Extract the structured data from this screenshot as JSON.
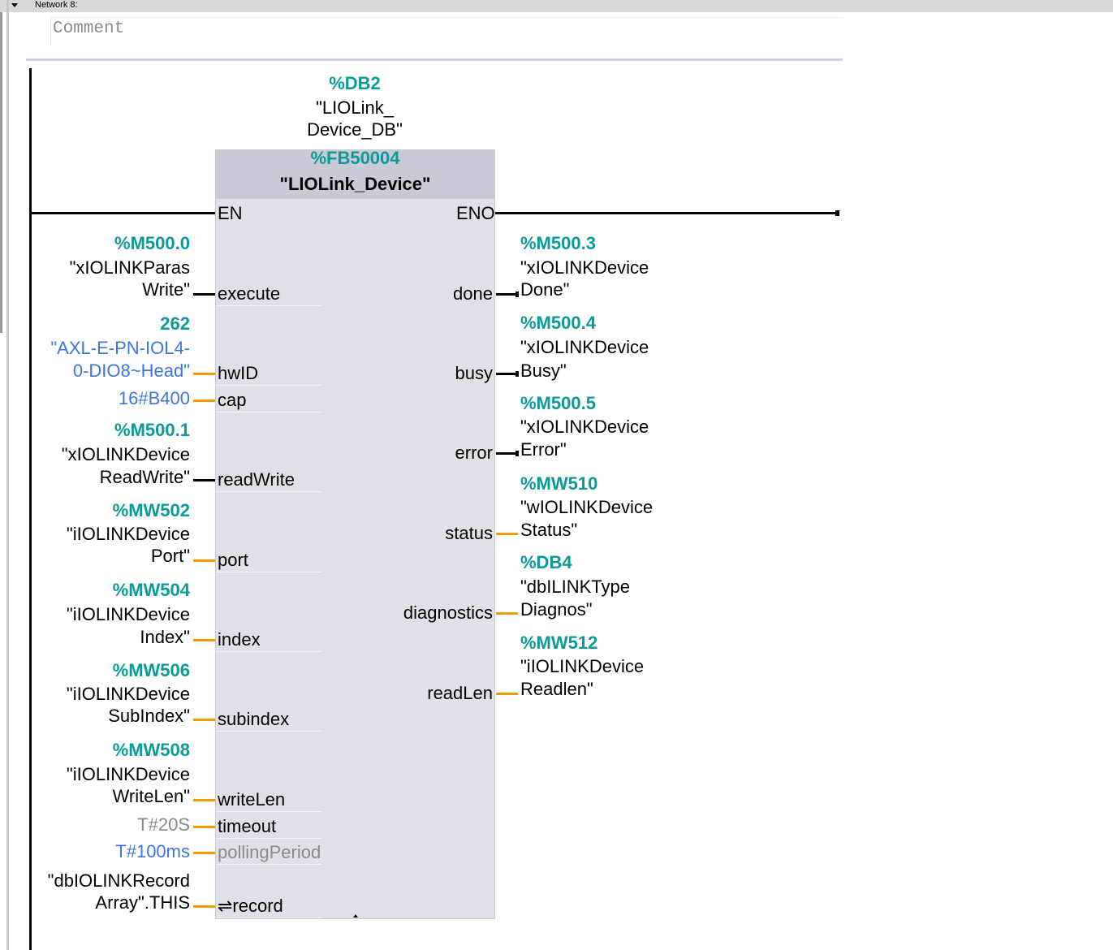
{
  "network": {
    "title": "Network 8:",
    "comment_placeholder": "Comment"
  },
  "instance": {
    "address": "%DB2",
    "name_line1": "\"LIOLink_",
    "name_line2": "Device_DB\""
  },
  "block": {
    "address": "%FB50004",
    "name": "\"LIOLink_Device\"",
    "en": "EN",
    "eno": "ENO"
  },
  "colors": {
    "operand_address": "#0a9a98",
    "constant": "#3f74d8",
    "bool_wire": "#000000",
    "data_wire": "#f59a00",
    "block_body": "#e0e0e8"
  },
  "inputs": [
    {
      "pin": "execute",
      "wire": "bool",
      "lines": [
        {
          "text": "%M500.0",
          "style": "teal"
        },
        {
          "text": "\"xIOLINKParas",
          "style": "t"
        },
        {
          "text": "Write\"",
          "style": "t"
        }
      ]
    },
    {
      "pin": "hwID",
      "wire": "data",
      "lines": [
        {
          "text": "262",
          "style": "teal"
        },
        {
          "text": "\"AXL-E-PN-IOL4-",
          "style": "blue"
        },
        {
          "text": "0-DIO8~Head\"",
          "style": "blue"
        }
      ]
    },
    {
      "pin": "cap",
      "wire": "data",
      "lines": [
        {
          "text": "16#B400",
          "style": "blue"
        }
      ]
    },
    {
      "pin": "readWrite",
      "wire": "bool",
      "lines": [
        {
          "text": "%M500.1",
          "style": "teal"
        },
        {
          "text": "\"xIOLINKDevice",
          "style": "t"
        },
        {
          "text": "ReadWrite\"",
          "style": "t"
        }
      ]
    },
    {
      "pin": "port",
      "wire": "data",
      "lines": [
        {
          "text": "%MW502",
          "style": "teal"
        },
        {
          "text": "\"iIOLINKDevice",
          "style": "t"
        },
        {
          "text": "Port\"",
          "style": "t"
        }
      ]
    },
    {
      "pin": "index",
      "wire": "data",
      "lines": [
        {
          "text": "%MW504",
          "style": "teal"
        },
        {
          "text": "\"iIOLINKDevice",
          "style": "t"
        },
        {
          "text": "Index\"",
          "style": "t"
        }
      ]
    },
    {
      "pin": "subindex",
      "wire": "data",
      "lines": [
        {
          "text": "%MW506",
          "style": "teal"
        },
        {
          "text": "\"iIOLINKDevice",
          "style": "t"
        },
        {
          "text": "SubIndex\"",
          "style": "t"
        }
      ]
    },
    {
      "pin": "writeLen",
      "wire": "data",
      "lines": [
        {
          "text": "%MW508",
          "style": "teal"
        },
        {
          "text": "\"iIOLINKDevice",
          "style": "t"
        },
        {
          "text": "WriteLen\"",
          "style": "t"
        }
      ]
    },
    {
      "pin": "timeout",
      "wire": "data",
      "lines": [
        {
          "text": "T#20S",
          "style": "gray"
        }
      ]
    },
    {
      "pin": "pollingPeriod",
      "wire": "data",
      "pin_disabled": true,
      "lines": [
        {
          "text": "T#100ms",
          "style": "blue"
        }
      ]
    },
    {
      "pin": "⇌record",
      "wire": "data",
      "lines": [
        {
          "text": "\"dbIOLINKRecord",
          "style": "t"
        },
        {
          "text": "Array\".THIS",
          "style": "t"
        }
      ]
    }
  ],
  "outputs": [
    {
      "pin": "done",
      "wire": "bool",
      "lines": [
        {
          "text": "%M500.3",
          "style": "teal"
        },
        {
          "text": "\"xIOLINKDevice",
          "style": "t"
        },
        {
          "text": "Done\"",
          "style": "t"
        }
      ]
    },
    {
      "pin": "busy",
      "wire": "bool",
      "lines": [
        {
          "text": "%M500.4",
          "style": "teal"
        },
        {
          "text": "\"xIOLINKDevice",
          "style": "t"
        },
        {
          "text": "Busy\"",
          "style": "t"
        }
      ]
    },
    {
      "pin": "error",
      "wire": "bool",
      "lines": [
        {
          "text": "%M500.5",
          "style": "teal"
        },
        {
          "text": "\"xIOLINKDevice",
          "style": "t"
        },
        {
          "text": "Error\"",
          "style": "t"
        }
      ]
    },
    {
      "pin": "status",
      "wire": "data",
      "lines": [
        {
          "text": "%MW510",
          "style": "teal"
        },
        {
          "text": "\"wIOLINKDevice",
          "style": "t"
        },
        {
          "text": "Status\"",
          "style": "t"
        }
      ]
    },
    {
      "pin": "diagnostics",
      "wire": "data",
      "lines": [
        {
          "text": "%DB4",
          "style": "teal"
        },
        {
          "text": "\"dbILINKType",
          "style": "t"
        },
        {
          "text": "Diagnos\"",
          "style": "t"
        }
      ]
    },
    {
      "pin": "readLen",
      "wire": "data",
      "lines": [
        {
          "text": "%MW512",
          "style": "teal"
        },
        {
          "text": "\"iIOLINKDevice",
          "style": "t"
        },
        {
          "text": "Readlen\"",
          "style": "t"
        }
      ]
    }
  ]
}
